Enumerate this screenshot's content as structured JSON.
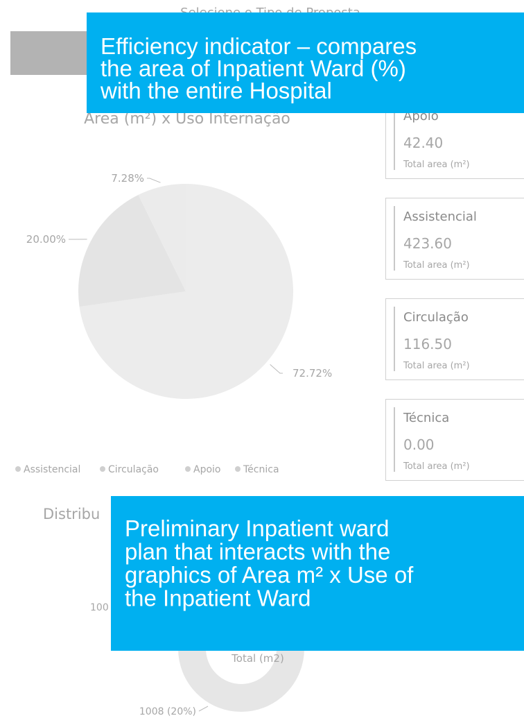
{
  "slicer": {
    "title": "Selecione o Tipo de Proposta"
  },
  "callouts": [
    [
      "Efficiency indicator – compares",
      "the area of Inpatient Ward (%)",
      "with the entire Hospital"
    ],
    [
      "Preliminary Inpatient ward",
      "plan that interacts with the",
      "graphics of Area m² x Use of",
      "the Inpatient Ward"
    ]
  ],
  "chart_data": {
    "type": "pie",
    "title": "Área (m²) x Uso Internação",
    "categories": [
      "Assistencial",
      "Circulação",
      "Apoio",
      "Técnica"
    ],
    "values": [
      72.72,
      20.0,
      7.28,
      0
    ],
    "value_labels": [
      "72.72%",
      "20.00%",
      "7.28%",
      null
    ],
    "colors": [
      "#ececec",
      "#e4e4e4",
      "#ebebeb",
      "#dcdcdc"
    ]
  },
  "cards": [
    {
      "title": "Apoio",
      "value": "42.40",
      "caption": "Total area (m²)"
    },
    {
      "title": "Assistencial",
      "value": "423.60",
      "caption": "Total area (m²)"
    },
    {
      "title": "Circulação",
      "value": "116.50",
      "caption": "Total area (m²)"
    },
    {
      "title": "Técnica",
      "value": "0.00",
      "caption": "Total area (m²)"
    }
  ],
  "distribution": {
    "title": "Distribu",
    "center_label": "Total (m2)",
    "labels": [
      "100",
      "1008 (20%)"
    ]
  }
}
